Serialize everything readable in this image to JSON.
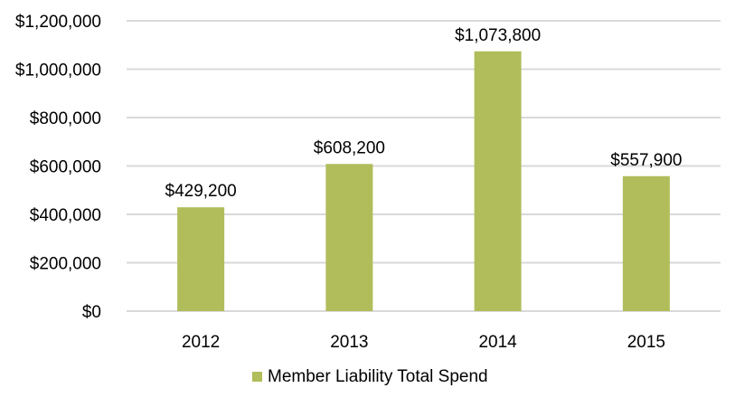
{
  "chart_data": {
    "type": "bar",
    "title": "",
    "xlabel": "",
    "ylabel": "",
    "categories": [
      "2012",
      "2013",
      "2014",
      "2015"
    ],
    "series": [
      {
        "name": "Member Liability Total Spend",
        "values": [
          429200,
          608200,
          1073800,
          557900
        ],
        "color": "#b1bd5a"
      }
    ],
    "data_labels": [
      "$429,200",
      "$608,200",
      "$1,073,800",
      "$557,900"
    ],
    "ylim": [
      0,
      1200000
    ],
    "yticks": [
      0,
      200000,
      400000,
      600000,
      800000,
      1000000,
      1200000
    ],
    "ytick_labels": [
      "$0",
      "$200,000",
      "$400,000",
      "$600,000",
      "$800,000",
      "$1,000,000",
      "$1,200,000"
    ],
    "grid": true,
    "legend_position": "bottom"
  }
}
